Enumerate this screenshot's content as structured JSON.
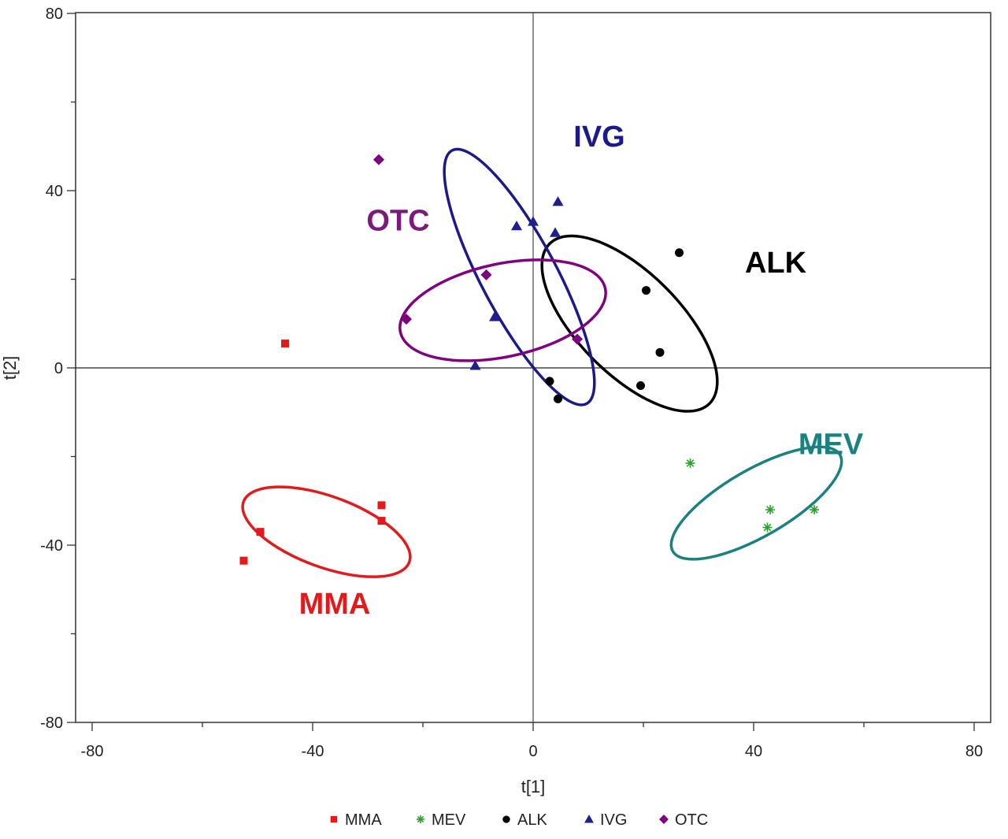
{
  "chart_data": {
    "type": "scatter",
    "xlabel": "t[1]",
    "ylabel": "t[2]",
    "xlim": [
      -80,
      80
    ],
    "ylim": [
      -80,
      80
    ],
    "xticks": [
      -80,
      -40,
      0,
      40,
      80
    ],
    "yticks": [
      -80,
      40,
      0,
      -40,
      80
    ],
    "yticks_shown": [
      80,
      40,
      0,
      -40,
      -80
    ],
    "grid": false,
    "legend_position": "bottom",
    "series": [
      {
        "name": "MMA",
        "color": "#e31a1c",
        "marker": "square",
        "points": [
          [
            -45,
            5.5
          ],
          [
            -27.5,
            -31
          ],
          [
            -27.5,
            -34.5
          ],
          [
            -49.5,
            -37
          ],
          [
            -52.5,
            -43.5
          ]
        ]
      },
      {
        "name": "MEV",
        "color": "#2ca02c",
        "marker": "asterisk",
        "points": [
          [
            28.5,
            -21.5
          ],
          [
            43,
            -32
          ],
          [
            51,
            -32
          ],
          [
            42.5,
            -36
          ]
        ]
      },
      {
        "name": "ALK",
        "color": "#000000",
        "marker": "circle",
        "points": [
          [
            26.5,
            26
          ],
          [
            20.5,
            17.5
          ],
          [
            23,
            3.5
          ],
          [
            3,
            -3
          ],
          [
            4.5,
            -7
          ],
          [
            19.5,
            -4
          ]
        ]
      },
      {
        "name": "IVG",
        "color": "#1f1f8f",
        "marker": "triangle",
        "points": [
          [
            4.5,
            37.5
          ],
          [
            -3,
            32
          ],
          [
            0,
            33
          ],
          [
            4,
            30.5
          ],
          [
            -7,
            11.5
          ],
          [
            -10.5,
            0.5
          ]
        ]
      },
      {
        "name": "OTC",
        "color": "#800080",
        "marker": "diamond",
        "points": [
          [
            -28,
            47
          ],
          [
            -8.5,
            21
          ],
          [
            -23,
            11
          ],
          [
            8,
            6.5
          ]
        ]
      }
    ],
    "annotations": [
      {
        "text": "IVG",
        "x": 12,
        "y": 50,
        "color": "#1a1a8c"
      },
      {
        "text": "OTC",
        "x": -24.5,
        "y": 31,
        "color": "#7a1a7a"
      },
      {
        "text": "ALK",
        "x": 44,
        "y": 21.5,
        "color": "#000000"
      },
      {
        "text": "MEV",
        "x": 54,
        "y": -19.5,
        "color": "#1a8080"
      },
      {
        "text": "MMA",
        "x": -36,
        "y": -55.5,
        "color": "#e31a1c"
      }
    ],
    "ellipses": [
      {
        "group": "MMA",
        "cx": -37.5,
        "cy": -37,
        "rx": 16,
        "ry": 8,
        "angle": 20,
        "color": "#e31a1c"
      },
      {
        "group": "MEV",
        "cx": 40.5,
        "cy": -30.5,
        "rx": 17.5,
        "ry": 7.5,
        "angle": -30,
        "color": "#1a8080"
      },
      {
        "group": "ALK",
        "cx": 17.5,
        "cy": 10,
        "rx": 20.5,
        "ry": 11.5,
        "angle": 45,
        "color": "#000000"
      },
      {
        "group": "IVG",
        "cx": -2.5,
        "cy": 20.5,
        "rx": 26,
        "ry": 8.5,
        "angle": 62,
        "color": "#1a1a8c"
      },
      {
        "group": "OTC",
        "cx": -5.5,
        "cy": 13,
        "rx": 19,
        "ry": 10.5,
        "angle": -12,
        "color": "#800080"
      }
    ]
  }
}
